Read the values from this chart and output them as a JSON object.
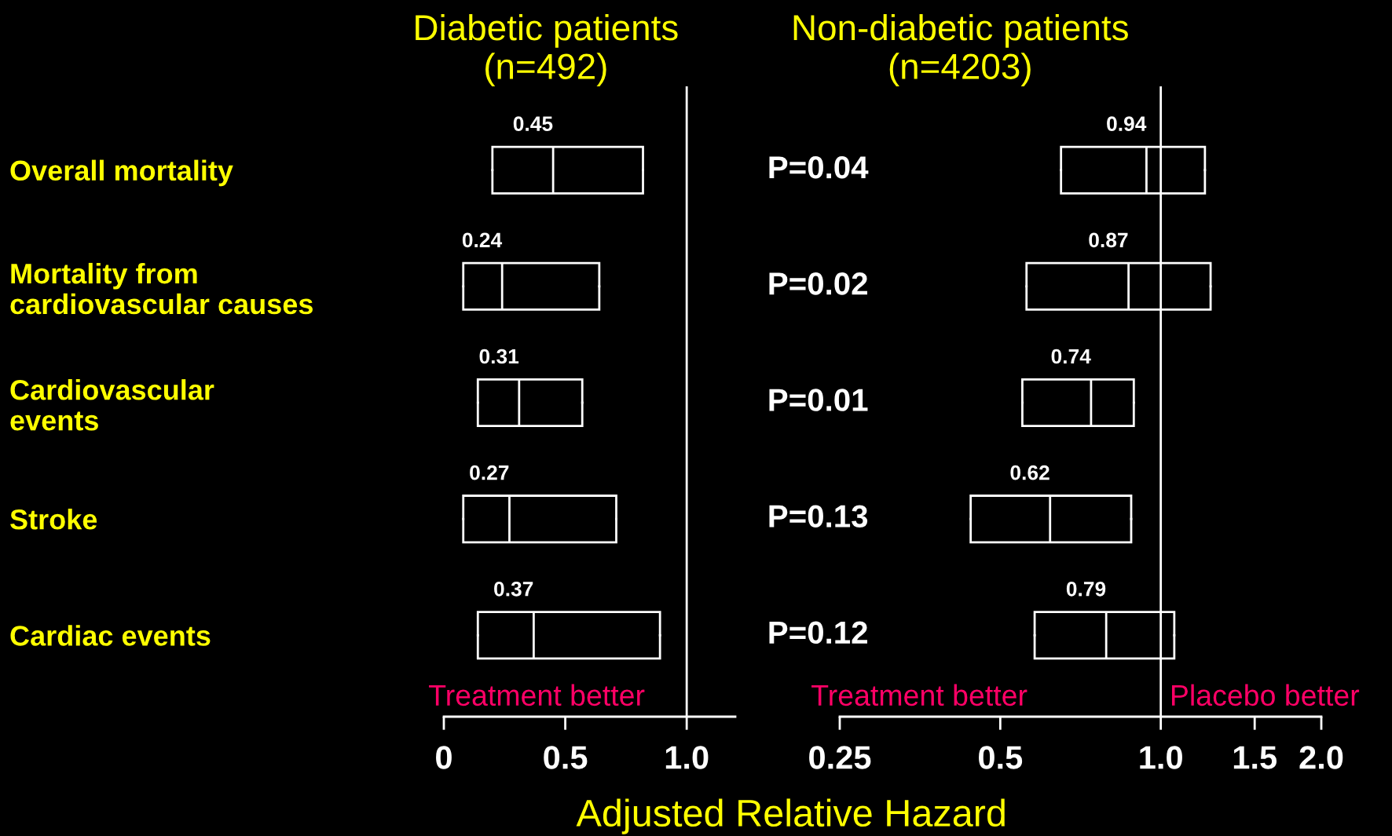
{
  "chart_data": [
    {
      "type": "box",
      "orientation": "horizontal",
      "title": "Diabetic patients\n(n=492)",
      "categories": [
        "Overall mortality",
        "Mortality from\ncardiovascular causes",
        "Cardiovascular\nevents",
        "Stroke",
        "Cardiac events"
      ],
      "series": [
        {
          "color": "#ffffff",
          "boxes": [
            {
              "low": 0.2,
              "q1": 0.2,
              "median": 0.45,
              "q3": 0.82,
              "high": 0.82
            },
            {
              "low": 0.08,
              "q1": 0.08,
              "median": 0.24,
              "q3": 0.64,
              "high": 0.64
            },
            {
              "low": 0.14,
              "q1": 0.14,
              "median": 0.31,
              "q3": 0.57,
              "high": 0.57
            },
            {
              "low": 0.08,
              "q1": 0.08,
              "median": 0.27,
              "q3": 0.71,
              "high": 0.71
            },
            {
              "low": 0.14,
              "q1": 0.14,
              "median": 0.37,
              "q3": 0.89,
              "high": 0.89
            }
          ],
          "value_labels": [
            "0.45",
            "0.24",
            "0.31",
            "0.27",
            "0.37"
          ]
        }
      ],
      "xlim": [
        0,
        1.2
      ],
      "xticks": [
        0,
        0.5,
        {
          "value": 1,
          "label": "1.0"
        }
      ],
      "ref_lines": [
        {
          "axis": "x",
          "value": 1,
          "color": "#ffffff"
        }
      ],
      "annotations": [
        "P=0.04",
        "P=0.02",
        "P=0.01",
        "P=0.13",
        "P=0.12",
        "Treatment better"
      ],
      "grid": false,
      "legend": false
    },
    {
      "type": "box",
      "orientation": "horizontal",
      "title": "Non-diabetic patients\n(n=4203)",
      "xlabel": "Adjusted Relative Hazard",
      "categories": [
        null,
        null,
        null,
        null,
        null
      ],
      "tick_labels": "x",
      "series": [
        {
          "color": "#ffffff",
          "boxes": [
            {
              "low": 0.65,
              "q1": 0.65,
              "median": 0.94,
              "q3": 1.21,
              "high": 1.21
            },
            {
              "low": 0.56,
              "q1": 0.56,
              "median": 0.87,
              "q3": 1.24,
              "high": 1.24
            },
            {
              "low": 0.55,
              "q1": 0.55,
              "median": 0.74,
              "q3": 0.89,
              "high": 0.89
            },
            {
              "low": 0.44,
              "q1": 0.44,
              "median": 0.62,
              "q3": 0.88,
              "high": 0.88
            },
            {
              "low": 0.58,
              "q1": 0.58,
              "median": 0.79,
              "q3": 1.06,
              "high": 1.06
            }
          ],
          "value_labels": [
            "0.94",
            "0.87",
            "0.74",
            "0.62",
            "0.79"
          ]
        }
      ],
      "log": "x",
      "xlim": [
        0.25,
        2.0
      ],
      "xticks": [
        0.25,
        0.5,
        {
          "value": 1,
          "label": "1.0"
        },
        {
          "value": 1.5,
          "label": "1.5"
        },
        {
          "value": 2,
          "label": "2.0"
        }
      ],
      "ref_lines": [
        {
          "axis": "x",
          "value": 1,
          "color": "#ffffff"
        }
      ],
      "annotations": [
        "Treatment better",
        "Placebo better"
      ],
      "grid": false,
      "legend": false
    }
  ]
}
